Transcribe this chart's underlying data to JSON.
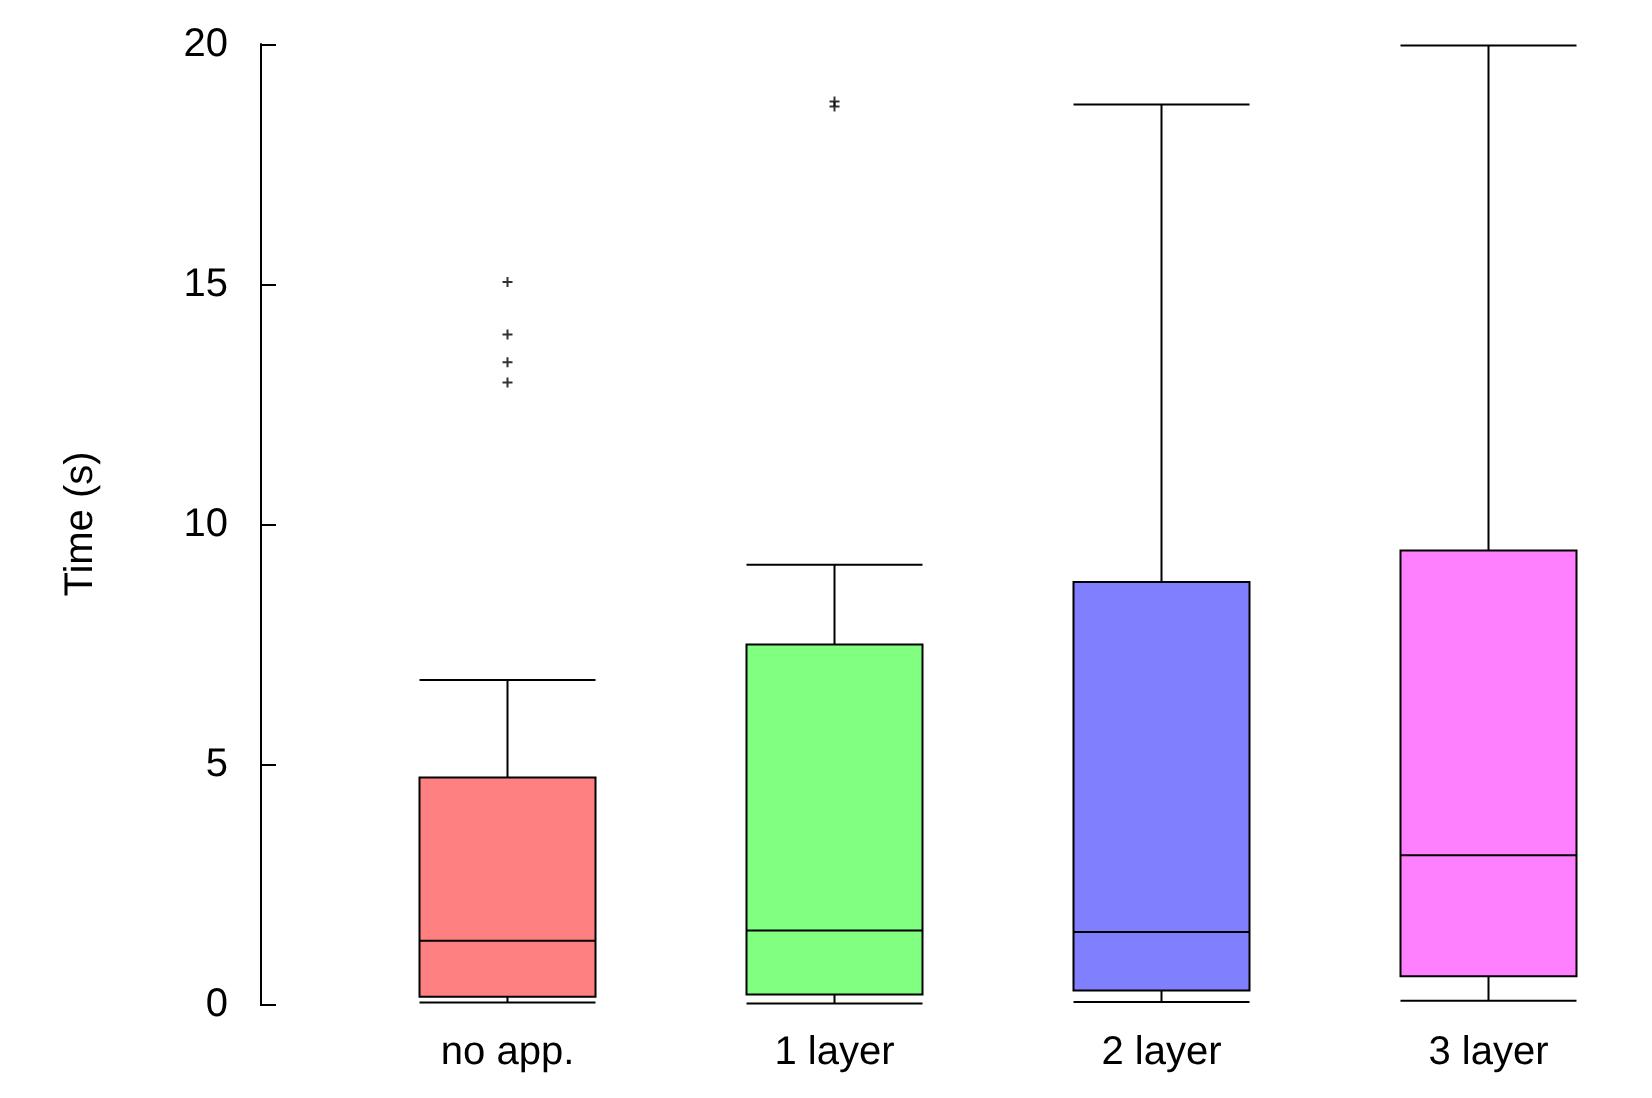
{
  "chart_data": {
    "type": "box",
    "ylabel": "Time (s)",
    "categories": [
      "no app.",
      "1 layer",
      "2 layer",
      "3 layer"
    ],
    "colors": [
      "#ff8080",
      "#80ff80",
      "#8080ff",
      "#ff80ff"
    ],
    "boxes": [
      {
        "low": 0.03,
        "q1": 0.15,
        "median": 1.32,
        "q3": 4.72,
        "high": 6.75,
        "outliers": [
          15.04,
          13.95,
          13.37,
          12.95
        ]
      },
      {
        "low": 0.01,
        "q1": 0.2,
        "median": 1.53,
        "q3": 7.49,
        "high": 9.15,
        "outliers": [
          18.8,
          18.7
        ]
      },
      {
        "low": 0.04,
        "q1": 0.28,
        "median": 1.5,
        "q3": 8.79,
        "high": 18.74
      },
      {
        "low": 0.07,
        "q1": 0.58,
        "median": 3.1,
        "q3": 9.45,
        "high": 19.97
      }
    ],
    "ylim": [
      0,
      20
    ],
    "yticks": [
      0,
      5,
      10,
      15,
      20
    ],
    "grid": false,
    "marker": "cross"
  }
}
